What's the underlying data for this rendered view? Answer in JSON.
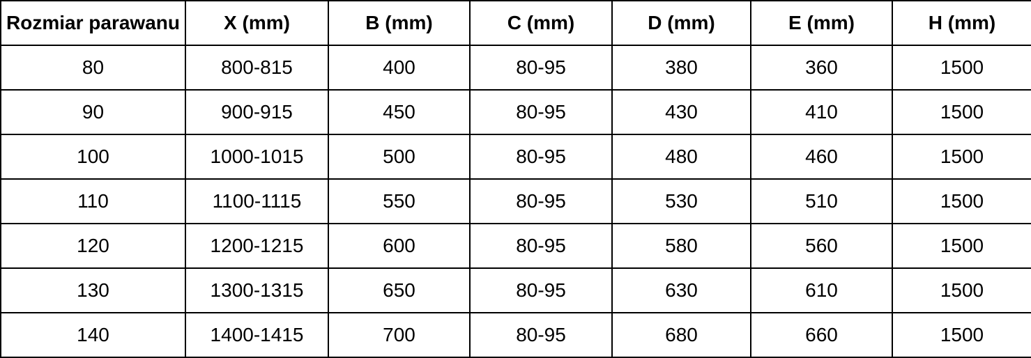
{
  "chart_data": {
    "type": "table",
    "title": "",
    "columns": [
      "Rozmiar parawanu",
      "X (mm)",
      "B (mm)",
      "C (mm)",
      "D (mm)",
      "E (mm)",
      "H (mm)"
    ],
    "rows": [
      [
        "80",
        "800-815",
        "400",
        "80-95",
        "380",
        "360",
        "1500"
      ],
      [
        "90",
        "900-915",
        "450",
        "80-95",
        "430",
        "410",
        "1500"
      ],
      [
        "100",
        "1000-1015",
        "500",
        "80-95",
        "480",
        "460",
        "1500"
      ],
      [
        "110",
        "1100-1115",
        "550",
        "80-95",
        "530",
        "510",
        "1500"
      ],
      [
        "120",
        "1200-1215",
        "600",
        "80-95",
        "580",
        "560",
        "1500"
      ],
      [
        "130",
        "1300-1315",
        "650",
        "80-95",
        "630",
        "610",
        "1500"
      ],
      [
        "140",
        "1400-1415",
        "700",
        "80-95",
        "680",
        "660",
        "1500"
      ]
    ],
    "layout": {
      "grid": true,
      "header_bold": true,
      "text_align": "center"
    }
  },
  "colors": {
    "border": "#000000",
    "text": "#000000",
    "background": "#ffffff"
  }
}
